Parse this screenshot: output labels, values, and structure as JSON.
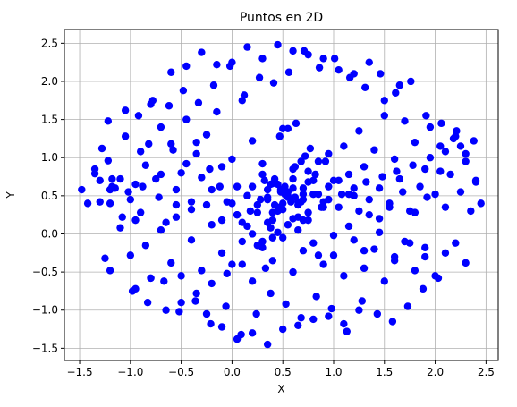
{
  "chart_data": {
    "type": "scatter",
    "title": "Puntos en 2D",
    "xlabel": "X",
    "ylabel": "Y",
    "xlim": [
      -1.65,
      2.62
    ],
    "ylim": [
      -1.66,
      2.68
    ],
    "xticks": [
      -1.5,
      -1.0,
      -0.5,
      0.0,
      0.5,
      1.0,
      1.5,
      2.0,
      2.5
    ],
    "yticks": [
      -1.5,
      -1.0,
      -0.5,
      0.0,
      0.5,
      1.0,
      1.5,
      2.0,
      2.5
    ],
    "xtick_labels": [
      "−1.5",
      "−1.0",
      "−0.5",
      "0.0",
      "0.5",
      "1.0",
      "1.5",
      "2.0",
      "2.5"
    ],
    "ytick_labels": [
      "−1.5",
      "−1.0",
      "−0.5",
      "0.0",
      "0.5",
      "1.0",
      "1.5",
      "2.0",
      "2.5"
    ],
    "grid": true,
    "point_color": "#0000ff",
    "series": [
      {
        "x": [
          -1.48,
          -1.42,
          -1.35,
          -1.3,
          -1.28,
          -1.22,
          -1.2,
          -1.18,
          -1.15,
          -1.1,
          -1.05,
          -1.0,
          -0.95,
          -0.9,
          -0.85,
          -0.8,
          -0.75,
          -0.7,
          -0.65,
          -0.6,
          -0.55,
          -0.5,
          -0.45,
          -0.4,
          -0.35,
          -0.3,
          -0.25,
          -0.2,
          -0.15,
          -0.1,
          -0.05,
          0.0,
          0.05,
          0.1,
          0.15,
          0.2,
          0.25,
          0.3,
          0.35,
          0.4,
          0.45,
          0.5,
          0.55,
          0.6,
          0.65,
          0.7,
          0.75,
          0.8,
          0.85,
          0.9,
          0.95,
          1.0,
          1.05,
          1.1,
          1.15,
          1.2,
          1.25,
          1.3,
          1.35,
          1.4,
          1.45,
          1.5,
          1.55,
          1.6,
          1.65,
          1.7,
          1.75,
          1.8,
          1.85,
          1.9,
          1.95,
          2.0,
          2.05,
          2.1,
          2.15,
          2.2,
          2.25,
          2.3,
          2.35,
          2.4,
          2.45,
          -1.25,
          -1.2,
          -1.1,
          -1.0,
          -0.95,
          -0.9,
          -0.85,
          -0.8,
          -0.7,
          -0.6,
          -0.55,
          -0.5,
          -0.4,
          -0.3,
          -0.2,
          -0.1,
          0.0,
          0.1,
          0.2,
          0.3,
          0.4,
          0.5,
          0.6,
          0.7,
          0.8,
          0.9,
          1.0,
          1.1,
          1.2,
          1.3,
          1.4,
          1.5,
          1.6,
          1.7,
          1.8,
          1.9,
          2.0,
          2.1,
          2.2,
          2.3,
          -1.22,
          -1.05,
          -0.92,
          -0.78,
          -0.62,
          -0.48,
          -0.33,
          -0.18,
          -0.02,
          0.12,
          0.27,
          0.41,
          0.56,
          0.71,
          0.86,
          1.01,
          1.16,
          1.31,
          1.46,
          1.61,
          1.76,
          1.91,
          2.06,
          2.21,
          -0.98,
          -0.83,
          -0.67,
          -0.52,
          -0.36,
          -0.21,
          -0.06,
          0.09,
          0.24,
          0.38,
          0.53,
          0.68,
          0.83,
          0.98,
          1.13,
          1.28,
          1.43,
          1.58,
          1.73,
          1.88,
          2.03,
          -0.6,
          -0.45,
          -0.3,
          -0.15,
          0.0,
          0.15,
          0.3,
          0.45,
          0.6,
          0.75,
          0.9,
          1.05,
          1.2,
          1.35,
          1.5,
          1.65,
          -0.25,
          -0.1,
          0.05,
          0.2,
          0.35,
          0.5,
          0.65,
          0.8,
          0.95,
          1.1,
          1.25,
          0.2,
          0.35,
          0.45,
          0.55,
          0.65,
          0.75,
          0.85,
          0.3,
          0.4,
          0.5,
          0.6,
          0.7,
          0.8,
          0.25,
          0.45,
          0.55,
          0.65,
          0.35,
          0.5,
          0.6,
          0.75,
          0.42,
          0.58,
          0.68,
          0.48,
          0.52,
          0.62,
          0.38,
          0.72,
          0.15,
          0.88,
          0.05,
          0.95,
          0.28,
          0.82,
          0.18,
          0.92,
          0.1,
          1.05,
          0.0,
          1.15,
          -0.12,
          1.25,
          -0.22,
          1.35,
          -0.35,
          1.45,
          -0.45,
          1.55,
          -0.58,
          1.68,
          -0.7,
          1.8,
          -0.82,
          1.92,
          -0.95,
          2.05,
          -1.08,
          2.18,
          -1.2,
          2.3,
          -1.3,
          2.4,
          0.4,
          0.55,
          0.7,
          0.25,
          0.85,
          0.1,
          1.0,
          -0.05,
          1.15,
          -0.2,
          1.3,
          -0.35,
          1.45,
          -0.5,
          1.6,
          -0.65,
          1.75,
          -0.8,
          1.9,
          0.33,
          0.47,
          0.63,
          0.77,
          0.5,
          0.45,
          0.55,
          0.6,
          0.4,
          0.65,
          0.35,
          0.7,
          0.3,
          0.75,
          0.2,
          0.9,
          0.15,
          0.95,
          0.05,
          1.08,
          -0.1,
          1.2,
          -0.25,
          1.32,
          -0.4,
          1.48,
          -0.55,
          1.62,
          -0.72,
          1.78,
          -0.88,
          1.95,
          -1.02,
          2.1,
          -1.18,
          2.25,
          -1.35,
          2.38,
          0.58,
          0.42,
          0.52,
          0.48,
          0.62,
          0.38,
          0.68,
          0.32
        ],
        "y": [
          0.58,
          0.4,
          0.79,
          0.7,
          1.12,
          0.96,
          0.4,
          0.62,
          0.6,
          0.72,
          1.28,
          0.45,
          0.18,
          1.08,
          0.9,
          1.7,
          0.72,
          1.4,
          0.15,
          1.18,
          0.38,
          0.8,
          1.5,
          0.32,
          1.2,
          0.74,
          1.3,
          0.58,
          1.6,
          0.88,
          0.42,
          0.98,
          0.62,
          1.75,
          0.5,
          1.22,
          0.28,
          0.92,
          0.45,
          0.66,
          0.3,
          0.55,
          0.48,
          0.72,
          0.38,
          0.6,
          0.82,
          0.52,
          0.95,
          0.42,
          1.05,
          0.7,
          0.35,
          1.15,
          0.78,
          0.5,
          1.35,
          0.88,
          0.25,
          1.1,
          0.6,
          1.55,
          0.4,
          0.98,
          0.72,
          1.48,
          0.3,
          1.2,
          0.62,
          0.85,
          1.4,
          0.52,
          1.15,
          0.35,
          0.78,
          1.28,
          0.55,
          1.05,
          0.3,
          0.68,
          0.4,
          -0.32,
          -0.48,
          0.08,
          -0.28,
          -0.72,
          0.28,
          -0.15,
          -0.58,
          0.05,
          -0.38,
          0.22,
          -0.55,
          -0.08,
          -0.48,
          0.12,
          -0.25,
          -0.4,
          -0.1,
          -0.62,
          -0.18,
          -0.35,
          -0.05,
          -0.5,
          -0.22,
          -0.12,
          -0.4,
          -0.28,
          -0.55,
          -0.08,
          -0.45,
          -0.2,
          -0.62,
          -0.3,
          -0.1,
          -0.48,
          -0.18,
          -0.55,
          -0.25,
          -0.12,
          -0.38,
          1.48,
          1.62,
          1.55,
          1.75,
          1.68,
          1.88,
          1.72,
          1.95,
          2.2,
          1.82,
          2.05,
          1.98,
          2.12,
          2.4,
          2.18,
          2.3,
          2.05,
          1.92,
          2.1,
          1.85,
          2.0,
          1.55,
          1.45,
          1.35,
          -0.75,
          -0.9,
          -0.62,
          -1.02,
          -0.88,
          -1.18,
          -0.95,
          -1.32,
          -1.05,
          -0.78,
          -0.92,
          -1.1,
          -0.82,
          -0.98,
          -1.28,
          -0.88,
          -1.05,
          -1.15,
          -0.95,
          -0.72,
          -0.58,
          2.12,
          2.2,
          2.38,
          2.22,
          2.25,
          2.45,
          2.3,
          2.48,
          2.4,
          2.35,
          2.3,
          2.15,
          2.1,
          2.25,
          1.75,
          1.95,
          -1.05,
          -1.22,
          -1.38,
          -1.3,
          -1.45,
          -1.25,
          -1.2,
          -1.12,
          -1.08,
          -1.18,
          -1.0,
          0.62,
          0.48,
          0.35,
          0.55,
          0.42,
          0.68,
          0.52,
          0.78,
          0.28,
          0.4,
          0.6,
          0.45,
          0.7,
          0.38,
          0.65,
          0.5,
          0.22,
          0.58,
          0.32,
          0.85,
          0.18,
          0.72,
          0.42,
          0.95,
          0.55,
          0.62,
          0.88,
          0.08,
          1.02,
          0.5,
          0.35,
          0.25,
          0.62,
          0.45,
          0.78,
          0.3,
          0.95,
          0.15,
          0.7,
          0.4,
          0.52,
          0.62,
          0.3,
          0.85,
          0.45,
          1.05,
          0.2,
          0.92,
          0.35,
          1.1,
          0.55,
          0.78,
          0.28,
          1.18,
          0.48,
          0.65,
          0.82,
          0.22,
          1.25,
          0.58,
          0.95,
          0.42,
          0.7,
          0.18,
          1.38,
          0.52,
          -0.15,
          -0.28,
          -0.4,
          -0.02,
          -0.52,
          0.1,
          -0.65,
          -0.22,
          -0.78,
          0.02,
          -0.9,
          -0.35,
          -1.0,
          -0.12,
          -0.58,
          -0.3,
          -0.45,
          1.28,
          1.45,
          1.12,
          1.38,
          0.02,
          0.12,
          0.2,
          -0.05,
          0.05,
          0.15,
          0.18,
          -0.1,
          0.28,
          0.0,
          0.35,
          0.1,
          0.45,
          0.25,
          0.52,
          0.18,
          0.6,
          0.38,
          0.68,
          0.42,
          0.75,
          0.58,
          0.82,
          0.48,
          0.9,
          0.62,
          1.0,
          0.55,
          1.08,
          0.72,
          1.15,
          0.85,
          1.22,
          0.45,
          0.38,
          0.52,
          0.58,
          0.48,
          0.65,
          0.42,
          0.7
        ]
      }
    ]
  }
}
